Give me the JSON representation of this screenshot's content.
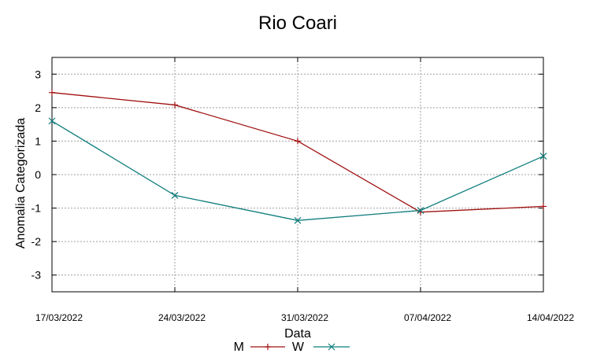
{
  "chart_data": {
    "type": "line",
    "title": "Rio Coari",
    "xlabel": "Data",
    "ylabel": "Anomalia Categorizada",
    "categories": [
      "17/03/2022",
      "24/03/2022",
      "31/03/2022",
      "07/04/2022",
      "14/04/2022"
    ],
    "yticks": [
      3,
      2,
      1,
      0,
      -1,
      -2,
      -3
    ],
    "ylim": [
      -3.5,
      3.5
    ],
    "grid": true,
    "legend_position": "bottom-center",
    "series": [
      {
        "name": "M",
        "color": "#a01010",
        "marker": "plus",
        "values": [
          2.45,
          2.08,
          1.0,
          -1.12,
          -0.95
        ]
      },
      {
        "name": "W",
        "color": "#0f7d7d",
        "marker": "cross",
        "values": [
          1.6,
          -0.62,
          -1.37,
          -1.07,
          0.55
        ]
      }
    ]
  }
}
